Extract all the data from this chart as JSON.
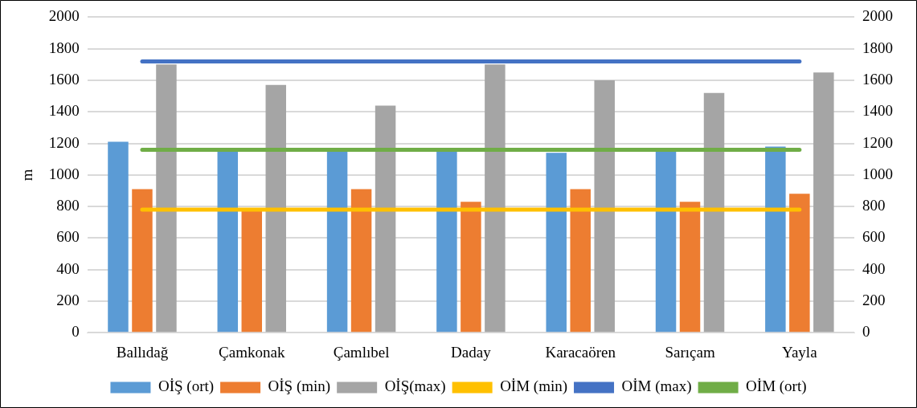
{
  "chart_data": {
    "type": "bar",
    "ylabel": "m",
    "categories": [
      "Ballıdağ",
      "Çamkonak",
      "Çamlıbel",
      "Daday",
      "Karacaören",
      "Sarıçam",
      "Yayla"
    ],
    "series": [
      {
        "name": "OİŞ (ort)",
        "color": "#5b9bd5",
        "values": [
          1210,
          1150,
          1150,
          1150,
          1140,
          1150,
          1180
        ]
      },
      {
        "name": "OİŞ (min)",
        "color": "#ed7d31",
        "values": [
          910,
          770,
          910,
          830,
          910,
          830,
          880
        ]
      },
      {
        "name": "OİŞ(max)",
        "color": "#a5a5a5",
        "values": [
          1700,
          1570,
          1440,
          1700,
          1600,
          1520,
          1650
        ]
      },
      {
        "name": "OİM (min)",
        "type": "line",
        "color": "#ffc000",
        "values": [
          780,
          780,
          780,
          780,
          780,
          780,
          780
        ]
      },
      {
        "name": "OİM (max)",
        "type": "line",
        "color": "#4472c4",
        "values": [
          1720,
          1720,
          1720,
          1720,
          1720,
          1720,
          1720
        ]
      },
      {
        "name": "OİM (ort)",
        "type": "line",
        "color": "#70ad47",
        "values": [
          1160,
          1160,
          1160,
          1160,
          1160,
          1160,
          1160
        ]
      }
    ],
    "ylim": [
      0,
      2000
    ],
    "yticks": [
      0,
      200,
      400,
      600,
      800,
      1000,
      1200,
      1400,
      1600,
      1800,
      2000
    ],
    "y2lim": [
      0,
      2000
    ],
    "y2ticks": [
      0,
      200,
      400,
      600,
      800,
      1000,
      1200,
      1400,
      1600,
      1800,
      2000
    ],
    "grid": "y",
    "legend": "bottom",
    "marker": "none"
  }
}
